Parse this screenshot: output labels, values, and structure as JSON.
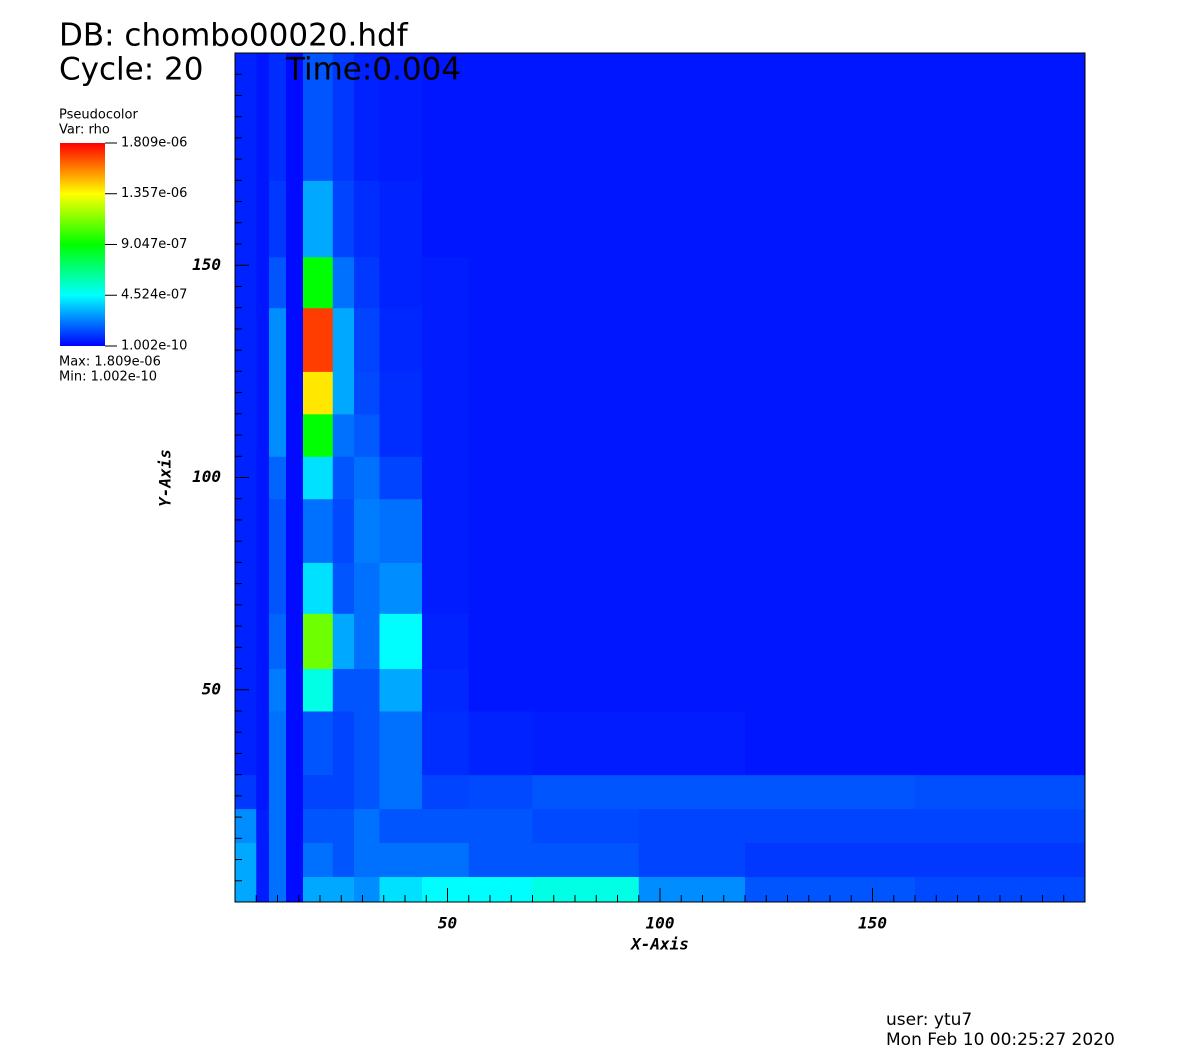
{
  "chart_data": {
    "type": "heatmap",
    "title": "DB: chombo00020.hdf",
    "cycle_label": "Cycle: 20",
    "time_label": "Time:0.004",
    "xlabel": "X-Axis",
    "ylabel": "Y-Axis",
    "xlim": [
      0,
      200
    ],
    "ylim": [
      0,
      200
    ],
    "xticks": [
      50,
      100,
      150
    ],
    "yticks": [
      50,
      100,
      150
    ],
    "xminorticks": [
      5,
      10,
      15,
      20,
      25,
      30,
      35,
      40,
      45,
      55,
      60,
      65,
      70,
      75,
      80,
      85,
      90,
      95,
      105,
      110,
      115,
      120,
      125,
      130,
      135,
      140,
      145,
      155,
      160,
      165,
      170,
      175,
      180,
      185,
      190,
      195
    ],
    "yminorticks": [
      5,
      10,
      15,
      20,
      25,
      30,
      35,
      40,
      45,
      55,
      60,
      65,
      70,
      75,
      80,
      85,
      90,
      95,
      105,
      110,
      115,
      120,
      125,
      130,
      135,
      140,
      145,
      155,
      160,
      165,
      170,
      175,
      180,
      185,
      190,
      195
    ],
    "x_edges": [
      0,
      5,
      8,
      12,
      16,
      23,
      28,
      34,
      44,
      55,
      70,
      95,
      120,
      160,
      200
    ],
    "y_edges": [
      0,
      6,
      14,
      22,
      30,
      45,
      55,
      68,
      80,
      95,
      105,
      115,
      125,
      140,
      152,
      170,
      200
    ],
    "values": [
      [
        3e-07,
        5e-08,
        2e-07,
        2e-08,
        3e-07,
        3e-07,
        2.5e-07,
        4e-07,
        4.5e-07,
        4.5e-07,
        5e-07,
        2.5e-07,
        1.5e-07,
        1.3e-07
      ],
      [
        3e-07,
        5e-08,
        2e-07,
        2e-08,
        2e-07,
        1.5e-07,
        2e-07,
        2e-07,
        2e-07,
        1.5e-07,
        1.5e-07,
        1.2e-07,
        1e-07,
        1e-07
      ],
      [
        2.5e-07,
        5e-08,
        2e-07,
        2e-08,
        1.5e-07,
        1.5e-07,
        2e-07,
        1.5e-07,
        1.5e-07,
        1.5e-07,
        1.3e-07,
        1.2e-07,
        1.2e-07,
        1.2e-07
      ],
      [
        1e-07,
        4e-08,
        2e-07,
        2e-08,
        1.2e-07,
        1.2e-07,
        1.5e-07,
        2e-07,
        1.2e-07,
        1.3e-07,
        1.5e-07,
        1.5e-07,
        1.5e-07,
        1.4e-07
      ],
      [
        6e-08,
        4e-08,
        2e-07,
        2e-08,
        1.5e-07,
        1.2e-07,
        1.5e-07,
        2e-07,
        8e-08,
        6e-08,
        5e-08,
        5e-08,
        4e-08,
        4e-08
      ],
      [
        6e-08,
        4e-08,
        2.2e-07,
        2e-08,
        5e-07,
        1.5e-07,
        1.5e-07,
        3e-07,
        7e-08,
        4e-08,
        4e-08,
        4e-08,
        4e-08,
        4e-08
      ],
      [
        6e-08,
        4e-08,
        1.8e-07,
        2e-08,
        1.1e-06,
        3e-07,
        2e-07,
        4.5e-07,
        6e-08,
        4e-08,
        4e-08,
        4e-08,
        4e-08,
        4e-08
      ],
      [
        6e-08,
        4e-08,
        1.5e-07,
        2e-08,
        4e-07,
        1.5e-07,
        2e-07,
        2.5e-07,
        5e-08,
        4e-08,
        4e-08,
        4e-08,
        4e-08,
        4e-08
      ],
      [
        6e-08,
        4e-08,
        1.5e-07,
        2e-08,
        2e-07,
        1.3e-07,
        2.2e-07,
        2e-07,
        5e-08,
        4e-08,
        4e-08,
        4e-08,
        4e-08,
        4e-08
      ],
      [
        6e-08,
        4e-08,
        1.8e-07,
        2e-08,
        4e-07,
        1.5e-07,
        2e-07,
        1.2e-07,
        5e-08,
        4e-08,
        4e-08,
        4e-08,
        4e-08,
        4e-08
      ],
      [
        6e-08,
        4e-08,
        2.5e-07,
        2e-08,
        9e-07,
        2e-07,
        1.6e-07,
        8e-08,
        5e-08,
        4e-08,
        4e-08,
        4e-08,
        4e-08,
        4e-08
      ],
      [
        6e-08,
        4e-08,
        2.5e-07,
        2e-08,
        1.4e-06,
        3e-07,
        1.3e-07,
        8e-08,
        5e-08,
        4e-08,
        4e-08,
        4e-08,
        4e-08,
        4e-08
      ],
      [
        6e-08,
        4e-08,
        2.5e-07,
        2e-08,
        1.7e-06,
        3e-07,
        1.2e-07,
        7e-08,
        5e-08,
        4e-08,
        4e-08,
        4e-08,
        4e-08,
        4e-08
      ],
      [
        6e-08,
        4e-08,
        1.5e-07,
        2e-08,
        9e-07,
        2e-07,
        1e-07,
        6e-08,
        5e-08,
        4e-08,
        4e-08,
        4e-08,
        4e-08,
        4e-08
      ],
      [
        6e-08,
        4e-08,
        1e-07,
        2e-08,
        3e-07,
        1.2e-07,
        8e-08,
        6e-08,
        4e-08,
        4e-08,
        4e-08,
        4e-08,
        4e-08,
        4e-08
      ],
      [
        6e-08,
        4e-08,
        8e-08,
        2e-08,
        1.5e-07,
        1e-07,
        6e-08,
        5e-08,
        4e-08,
        4e-08,
        4e-08,
        4e-08,
        4e-08,
        4e-08
      ]
    ],
    "colorbar": {
      "plot_label": "Pseudocolor",
      "var_label": "Var: rho",
      "clim": [
        1.002e-10,
        1.809e-06
      ],
      "colormap": [
        "#0000ff",
        "#00ffff",
        "#00ff00",
        "#ffff00",
        "#ff0000"
      ],
      "ticks": [
        {
          "value": 1.809e-06,
          "label": "1.809e-06"
        },
        {
          "value": 1.357e-06,
          "label": "1.357e-06"
        },
        {
          "value": 9.047e-07,
          "label": "9.047e-07"
        },
        {
          "value": 4.524e-07,
          "label": "4.524e-07"
        },
        {
          "value": 1.002e-10,
          "label": "1.002e-10"
        }
      ],
      "max_label": "Max:  1.809e-06",
      "min_label": "Min:  1.002e-10"
    },
    "user_label": "user: ytu7",
    "date_label": "Mon Feb 10 00:25:27 2020"
  }
}
